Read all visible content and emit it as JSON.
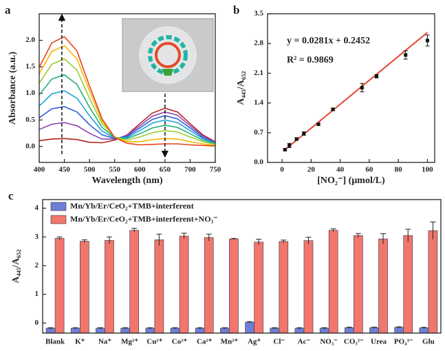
{
  "chart_data": [
    {
      "type": "line",
      "panel_label": "a",
      "x_label": "Wavelength (nm)",
      "y_label": "Absorbance (a.u.)",
      "x": [
        400,
        425,
        450,
        475,
        500,
        525,
        550,
        575,
        600,
        625,
        650,
        675,
        700,
        725,
        750
      ],
      "series": [
        {
          "color": "#b22222",
          "values": [
            0.11,
            0.14,
            0.15,
            0.13,
            0.08,
            0.07,
            0.12,
            0.22,
            0.43,
            0.63,
            0.72,
            0.65,
            0.43,
            0.22,
            0.09
          ]
        },
        {
          "color": "#8e44ad",
          "values": [
            0.32,
            0.42,
            0.45,
            0.39,
            0.25,
            0.14,
            0.14,
            0.21,
            0.39,
            0.57,
            0.65,
            0.59,
            0.39,
            0.2,
            0.08
          ]
        },
        {
          "color": "#2e5fd8",
          "values": [
            0.54,
            0.71,
            0.75,
            0.65,
            0.41,
            0.22,
            0.15,
            0.19,
            0.35,
            0.51,
            0.58,
            0.52,
            0.35,
            0.17,
            0.07
          ]
        },
        {
          "color": "#1fa3d8",
          "values": [
            0.76,
            0.99,
            1.05,
            0.91,
            0.58,
            0.29,
            0.16,
            0.17,
            0.3,
            0.44,
            0.5,
            0.45,
            0.3,
            0.15,
            0.06
          ]
        },
        {
          "color": "#22b07a",
          "values": [
            0.97,
            1.27,
            1.35,
            1.17,
            0.74,
            0.36,
            0.17,
            0.15,
            0.24,
            0.35,
            0.4,
            0.36,
            0.24,
            0.12,
            0.05
          ]
        },
        {
          "color": "#9acd32",
          "values": [
            1.19,
            1.55,
            1.65,
            1.44,
            0.91,
            0.43,
            0.18,
            0.12,
            0.18,
            0.26,
            0.3,
            0.27,
            0.18,
            0.09,
            0.04
          ]
        },
        {
          "color": "#f2b800",
          "values": [
            1.37,
            1.79,
            1.9,
            1.65,
            1.05,
            0.48,
            0.17,
            0.09,
            0.09,
            0.13,
            0.15,
            0.14,
            0.09,
            0.05,
            0.02
          ]
        },
        {
          "color": "#e8401c",
          "values": [
            1.49,
            1.95,
            2.07,
            1.8,
            1.14,
            0.52,
            0.17,
            0.06,
            0.03,
            0.04,
            0.05,
            0.05,
            0.03,
            0.02,
            0.01
          ]
        }
      ],
      "vlines": [
        445,
        650
      ],
      "xlim": [
        400,
        750
      ],
      "xticks": [
        400,
        450,
        500,
        550,
        600,
        650,
        700,
        750
      ],
      "ylim": [
        -0.3,
        2.5
      ],
      "yticks": [
        {
          "value": 0,
          "label": "0.0"
        },
        {
          "value": 0.5,
          "label": "0.5"
        },
        {
          "value": 1,
          "label": "1.0"
        },
        {
          "value": 1.5,
          "label": "1.5"
        },
        {
          "value": 2,
          "label": "2.0"
        }
      ]
    },
    {
      "type": "scatter",
      "panel_label": "b",
      "x_label": "[NO₂⁻] (μmol/L)",
      "y_label": "A₄₄₅/A₆₅₂",
      "annotations": [
        "y = 0.0281x + 0.2452",
        "R² = 0.9869"
      ],
      "x": [
        2,
        5,
        10,
        15,
        25,
        35,
        55,
        65,
        85,
        100
      ],
      "values": [
        0.3,
        0.4,
        0.55,
        0.68,
        0.9,
        1.25,
        1.76,
        2.03,
        2.53,
        2.87
      ],
      "errors": [
        0.02,
        0.05,
        0.03,
        0.04,
        0.03,
        0.03,
        0.1,
        0.04,
        0.1,
        0.13
      ],
      "color": "#111111",
      "fit": {
        "color": "#e8402a",
        "x": [
          2,
          100
        ],
        "y": [
          0.3,
          3.06
        ]
      },
      "xlim": [
        -10,
        105
      ],
      "xticks": [
        0,
        20,
        40,
        60,
        80,
        100
      ],
      "ylim": [
        0,
        3.5
      ],
      "yticks": [
        {
          "value": 0,
          "label": "0.0"
        },
        {
          "value": 0.7,
          "label": "0.7"
        },
        {
          "value": 1.4,
          "label": "1.4"
        },
        {
          "value": 2.1,
          "label": "2.1"
        },
        {
          "value": 2.8,
          "label": "2.8"
        },
        {
          "value": 3.5,
          "label": "3.5"
        }
      ]
    },
    {
      "type": "bar",
      "panel_label": "c",
      "y_label": "A₄₄₅/A₆₅₂",
      "categories": [
        "Blank",
        "K⁺",
        "Na⁺",
        "Mg²⁺",
        "Cu²⁺",
        "Co²⁺",
        "Ca²⁺",
        "Mn²⁺",
        "Ag⁺",
        "Cl⁻",
        "Ac⁻",
        "NO₃⁻",
        "CO₃²⁻",
        "Urea",
        "PO₄³⁻",
        "Glu"
      ],
      "series": [
        {
          "name": "Mn/Yb/Er/CeO₂+TMB+interferent",
          "color": "#6f7fd6",
          "values": [
            -0.18,
            -0.18,
            -0.18,
            -0.18,
            -0.18,
            -0.18,
            -0.18,
            -0.18,
            0.03,
            -0.18,
            -0.18,
            -0.18,
            -0.16,
            -0.16,
            -0.15,
            -0.17
          ],
          "errors": [
            0.02,
            0.02,
            0.02,
            0.02,
            0.02,
            0.02,
            0.02,
            0.02,
            0.02,
            0.02,
            0.02,
            0.02,
            0.02,
            0.02,
            0.02,
            0.02
          ]
        },
        {
          "name": "Mn/Yb/Er/CeO₂+TMB+interferent+NO₃⁻",
          "color": "#f0766e",
          "values": [
            2.95,
            2.85,
            2.88,
            3.23,
            2.9,
            3.03,
            2.98,
            2.93,
            2.82,
            2.84,
            2.87,
            3.23,
            3.05,
            2.93,
            3.05,
            3.22
          ],
          "errors": [
            0.05,
            0.05,
            0.12,
            0.07,
            0.2,
            0.1,
            0.12,
            0.02,
            0.1,
            0.05,
            0.12,
            0.05,
            0.07,
            0.18,
            0.22,
            0.3
          ]
        }
      ],
      "ylim": [
        -0.35,
        4.3
      ],
      "yticks": [
        0,
        1,
        2,
        3,
        4
      ]
    }
  ]
}
